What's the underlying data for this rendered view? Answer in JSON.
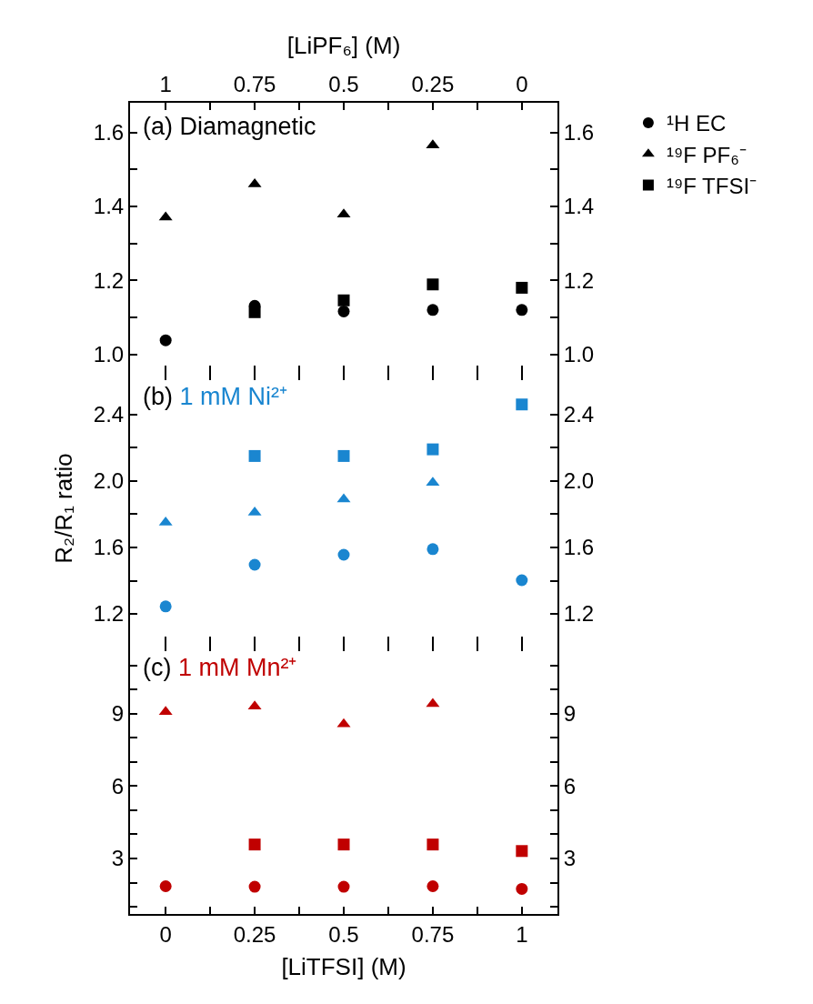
{
  "chart_data": [
    {
      "type": "scatter",
      "title": "(a)",
      "subtitle": "Diamagnetic",
      "x": [
        0,
        0.25,
        0.5,
        0.75,
        1
      ],
      "xlim": [
        -0.1,
        1.1
      ],
      "xticks": [
        0,
        {
          "value": 0.125,
          "label": null
        },
        0.25,
        {
          "value": 0.375,
          "label": null
        },
        0.5,
        {
          "value": 0.625,
          "label": null
        },
        0.75,
        {
          "value": 0.875,
          "label": null
        },
        1
      ],
      "x2label": "[LiPF₆] (M)",
      "x2lim": [
        1.1,
        -0.1
      ],
      "x2ticks": [
        1,
        {
          "value": 0.875,
          "label": null
        },
        0.75,
        {
          "value": 0.625,
          "label": null
        },
        0.5,
        {
          "value": 0.375,
          "label": null
        },
        0.25,
        {
          "value": 0.125,
          "label": null
        },
        0
      ],
      "ylim": [
        0.95,
        1.68
      ],
      "yticks": [
        {
          "value": 1,
          "label": "1.0"
        },
        {
          "value": 1.1,
          "label": null
        },
        1.2,
        {
          "value": 1.3,
          "label": null
        },
        1.4,
        {
          "value": 1.5,
          "label": null
        },
        1.6
      ],
      "y2lim": [
        0.95,
        1.68
      ],
      "y2ticks": [
        {
          "value": 1,
          "label": "1.0"
        },
        {
          "value": 1.1,
          "label": null
        },
        1.2,
        {
          "value": 1.3,
          "label": null
        },
        1.4,
        {
          "value": 1.5,
          "label": null
        },
        1.6
      ],
      "tick_labels": "y",
      "legend": "right",
      "series": [
        {
          "name": "¹H EC",
          "color": "#000000",
          "marker": "circle",
          "values": [
            1.038,
            1.131,
            1.116,
            1.12,
            1.12
          ]
        },
        {
          "name": "¹⁹F PF₆⁻",
          "color": "#000000",
          "marker": "triangle",
          "values": [
            1.37,
            1.46,
            1.378,
            1.565,
            null
          ]
        },
        {
          "name": "¹⁹F TFSI⁻",
          "color": "#000000",
          "marker": "square",
          "values": [
            null,
            1.114,
            1.146,
            1.189,
            1.18
          ]
        }
      ]
    },
    {
      "type": "scatter",
      "title": "(b)",
      "subtitle": "1 mM Ni²⁺",
      "ylabel": "R₂/R₁ ratio",
      "x": [
        0,
        0.25,
        0.5,
        0.75,
        1
      ],
      "xlim": [
        -0.1,
        1.1
      ],
      "xticks": [
        0,
        {
          "value": 0.125,
          "label": null
        },
        0.25,
        {
          "value": 0.375,
          "label": null
        },
        0.5,
        {
          "value": 0.625,
          "label": null
        },
        0.75,
        {
          "value": 0.875,
          "label": null
        },
        1
      ],
      "ylim": [
        1.02,
        2.65
      ],
      "yticks": [
        1.2,
        {
          "value": 1.4,
          "label": null
        },
        1.6,
        {
          "value": 1.8,
          "label": null
        },
        {
          "value": 2,
          "label": "2.0"
        },
        {
          "value": 2.2,
          "label": null
        },
        2.4
      ],
      "y2lim": [
        1.02,
        2.65
      ],
      "y2ticks": [
        1.2,
        {
          "value": 1.4,
          "label": null
        },
        1.6,
        {
          "value": 1.8,
          "label": null
        },
        {
          "value": 2,
          "label": "2.0"
        },
        {
          "value": 2.2,
          "label": null
        },
        2.4
      ],
      "tick_labels": "y",
      "series": [
        {
          "color": "#1a86d0",
          "marker": "circle",
          "values": [
            1.245,
            1.496,
            1.556,
            1.59,
            1.403
          ]
        },
        {
          "color": "#1a86d0",
          "marker": "triangle",
          "values": [
            1.75,
            1.81,
            1.89,
            1.99,
            null
          ]
        },
        {
          "color": "#1a86d0",
          "marker": "square",
          "values": [
            null,
            2.15,
            2.15,
            2.19,
            2.46
          ]
        }
      ]
    },
    {
      "type": "scatter",
      "title": "(c)",
      "subtitle": "1 mM Mn²⁺",
      "xlabel": "[LiTFSI] (M)",
      "x": [
        0,
        0.25,
        0.5,
        0.75,
        1
      ],
      "xlim": [
        -0.1,
        1.1
      ],
      "xticks": [
        0,
        {
          "value": 0.125,
          "label": null
        },
        0.25,
        {
          "value": 0.375,
          "label": null
        },
        0.5,
        {
          "value": 0.625,
          "label": null
        },
        0.75,
        {
          "value": 0.875,
          "label": null
        },
        1
      ],
      "ylim": [
        0.7,
        11.9
      ],
      "yticks": [
        {
          "value": 1,
          "label": null
        },
        {
          "value": 2,
          "label": null
        },
        3,
        {
          "value": 4,
          "label": null
        },
        {
          "value": 5,
          "label": null
        },
        6,
        {
          "value": 7,
          "label": null
        },
        {
          "value": 8,
          "label": null
        },
        9,
        {
          "value": 10,
          "label": null
        },
        {
          "value": 11,
          "label": null
        }
      ],
      "y2lim": [
        0.7,
        11.9
      ],
      "y2ticks": [
        {
          "value": 1,
          "label": null
        },
        {
          "value": 2,
          "label": null
        },
        3,
        {
          "value": 4,
          "label": null
        },
        {
          "value": 5,
          "label": null
        },
        6,
        {
          "value": 7,
          "label": null
        },
        {
          "value": 8,
          "label": null
        },
        9,
        {
          "value": 10,
          "label": null
        },
        {
          "value": 11,
          "label": null
        }
      ],
      "series": [
        {
          "color": "#c00000",
          "marker": "circle",
          "values": [
            1.85,
            1.83,
            1.83,
            1.85,
            1.74
          ]
        },
        {
          "color": "#c00000",
          "marker": "triangle",
          "values": [
            9.08,
            9.31,
            8.57,
            9.41,
            null
          ]
        },
        {
          "color": "#c00000",
          "marker": "square",
          "values": [
            null,
            3.58,
            3.58,
            3.58,
            3.31
          ]
        }
      ]
    }
  ]
}
